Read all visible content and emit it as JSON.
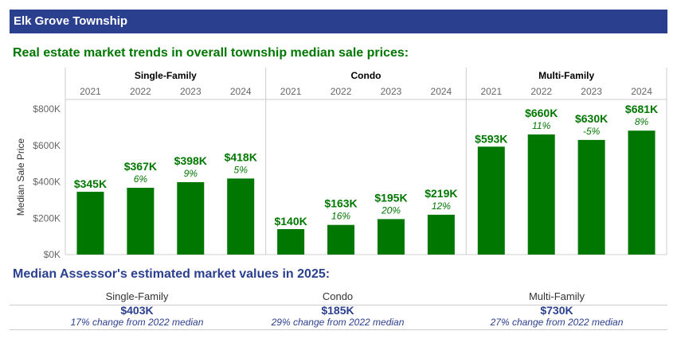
{
  "header": {
    "title": "Elk Grove Township"
  },
  "trends": {
    "title": "Real estate market trends in overall township median sale prices:"
  },
  "chart_data": {
    "type": "bar",
    "ylabel": "Median Sale Price",
    "ylim": [
      0,
      800
    ],
    "yticks": [
      {
        "value": 0,
        "label": "$0K"
      },
      {
        "value": 200,
        "label": "$200K"
      },
      {
        "value": 400,
        "label": "$400K"
      },
      {
        "value": 600,
        "label": "$600K"
      },
      {
        "value": 800,
        "label": "$800K"
      }
    ],
    "grid": false,
    "bar_color": "#007700",
    "panels": [
      {
        "name": "Single-Family",
        "categories": [
          "2021",
          "2022",
          "2023",
          "2024"
        ],
        "values": [
          345,
          367,
          398,
          418
        ],
        "labels": [
          "$345K",
          "$367K",
          "$398K",
          "$418K"
        ],
        "changes": [
          "",
          "6%",
          "9%",
          "5%"
        ]
      },
      {
        "name": "Condo",
        "categories": [
          "2021",
          "2022",
          "2023",
          "2024"
        ],
        "values": [
          140,
          163,
          195,
          219
        ],
        "labels": [
          "$140K",
          "$163K",
          "$195K",
          "$219K"
        ],
        "changes": [
          "",
          "16%",
          "20%",
          "12%"
        ]
      },
      {
        "name": "Multi-Family",
        "categories": [
          "2021",
          "2022",
          "2023",
          "2024"
        ],
        "values": [
          593,
          660,
          630,
          681
        ],
        "labels": [
          "$593K",
          "$660K",
          "$630K",
          "$681K"
        ],
        "changes": [
          "",
          "11%",
          "-5%",
          "8%"
        ]
      }
    ]
  },
  "assessor": {
    "title": "Median Assessor's estimated market values in 2025:",
    "items": [
      {
        "label": "Single-Family",
        "value": "$403K",
        "note": "17% change from 2022 median"
      },
      {
        "label": "Condo",
        "value": "$185K",
        "note": "29% change from 2022 median"
      },
      {
        "label": "Multi-Family",
        "value": "$730K",
        "note": "27% change from 2022 median"
      }
    ]
  },
  "colors": {
    "header_bg": "#2b3f8f",
    "accent_green": "#007700",
    "accent_blue": "#2b3f8f"
  }
}
